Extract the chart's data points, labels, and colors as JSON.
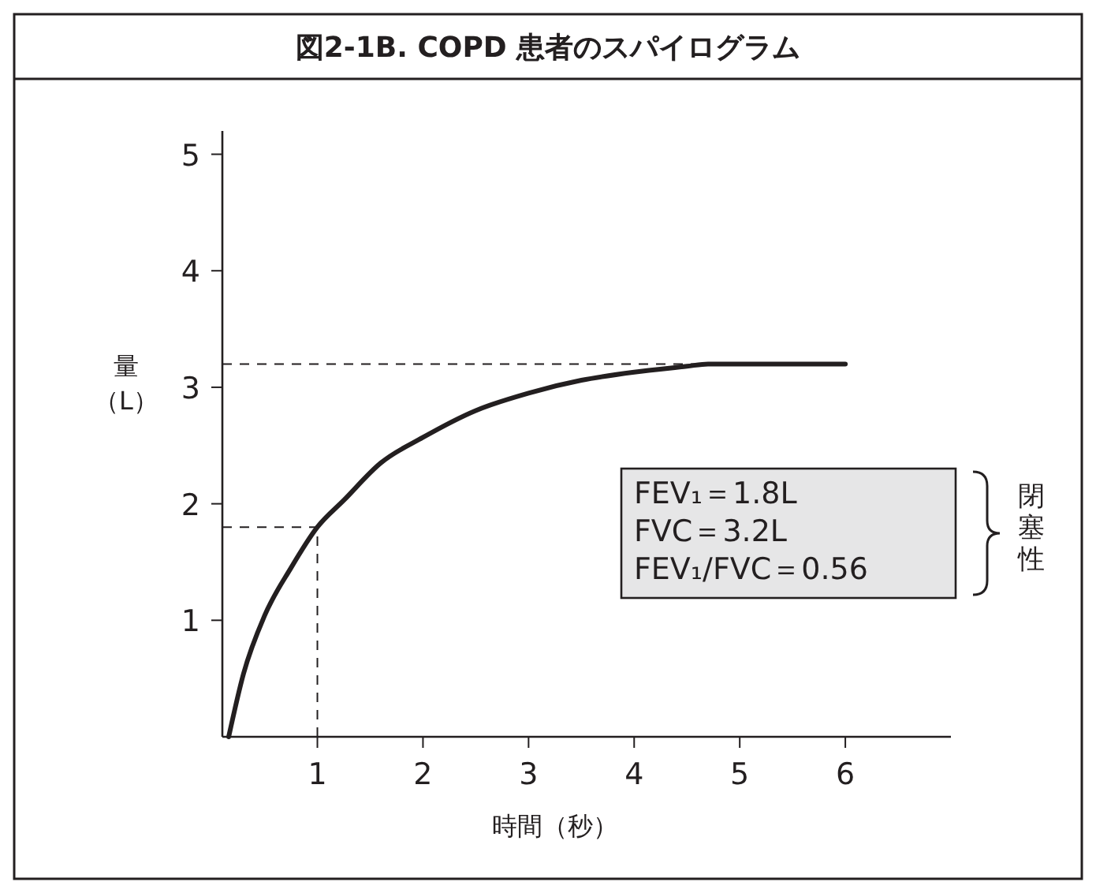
{
  "chart_data": {
    "type": "line",
    "title": "図2-1B. COPD 患者のスパイログラム",
    "xlabel": "時間（秒）",
    "ylabel": "量（L）",
    "xlim": [
      0.1,
      7
    ],
    "xticks": [
      1,
      2,
      3,
      4,
      5,
      6
    ],
    "ylim": [
      0,
      5.2
    ],
    "yticks": [
      1,
      2,
      3,
      4,
      5
    ],
    "marker": "none",
    "line_style": "solid",
    "series": [
      {
        "color": "#231f20",
        "x": [
          0.16,
          0.3,
          0.5,
          0.75,
          1,
          1.25,
          1.6,
          2,
          2.5,
          3,
          3.5,
          4,
          4.5,
          4.7,
          5,
          5.5,
          6
        ],
        "values": [
          0,
          0.54,
          1.04,
          1.45,
          1.8,
          2.03,
          2.35,
          2.57,
          2.8,
          2.95,
          3.06,
          3.13,
          3.18,
          3.2,
          3.2,
          3.2,
          3.2
        ]
      }
    ],
    "ref_lines": [
      {
        "axis": "y",
        "value": 3.2,
        "line_style": "dashed"
      },
      {
        "axis": "y",
        "value": 1.8,
        "line_style": "dashed"
      },
      {
        "axis": "x",
        "value": 1,
        "line_style": "dashed"
      }
    ],
    "annotations": [
      "FEV₁＝1.8L",
      "FVC＝3.2L",
      "FEV₁/FVC＝0.56",
      "閉塞性"
    ]
  }
}
